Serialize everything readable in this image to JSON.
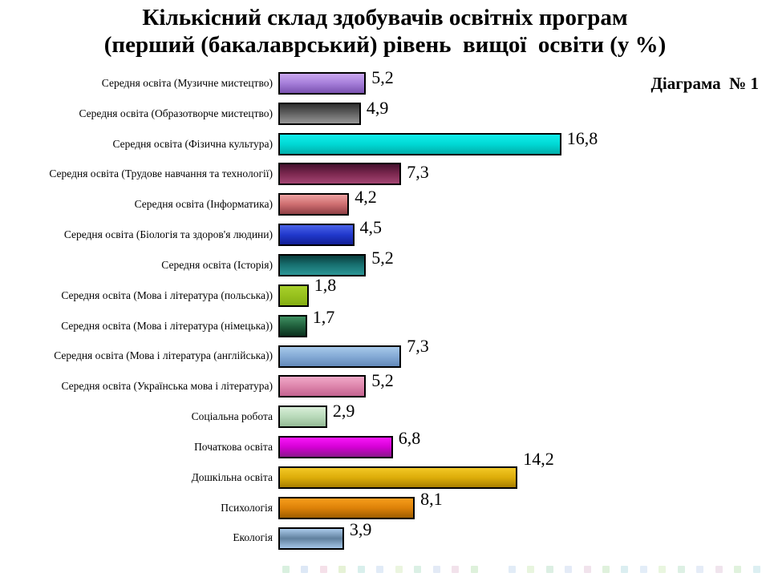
{
  "title": {
    "line1": "Кількісний склад здобувачів освітніх програм",
    "line2": "(перший (бакалаврський) рівень  вищої  освіти (у %)"
  },
  "diagram_label": "Діаграма  № 1",
  "chart_data": {
    "type": "bar",
    "orientation": "horizontal",
    "unit": "%",
    "title": "Кількісний склад здобувачів освітніх програм (перший (бакалаврський) рівень вищої освіти (у %)",
    "xlim": [
      0,
      17
    ],
    "axes_visible": false,
    "gridlines": false,
    "legend_position": "none",
    "value_label_position": "outside-end",
    "categories": [
      "Середня освіта (Музичне мистецтво)",
      "Середня освіта (Образотворче мистецтво)",
      "Середня освіта (Фізична  культура)",
      "Середня освіта (Трудове навчання та технології)",
      "Середня освіта (Інформатика)",
      "Середня освіта (Біологія та здоров'я людини)",
      "Середня освіта (Історія)",
      "Середня освіта (Мова і література (польська))",
      "Середня освіта (Мова і література (німецька))",
      "Середня освіта (Мова і література (англійська))",
      "Середня освіта (Українська мова і література)",
      "Соціальна робота",
      "Початкова освіта",
      "Дошкільна освіта",
      "Психологія",
      "Екологія"
    ],
    "values": [
      5.2,
      4.9,
      16.8,
      7.3,
      4.2,
      4.5,
      5.2,
      1.8,
      1.7,
      7.3,
      5.2,
      2.9,
      6.8,
      14.2,
      8.1,
      3.9
    ],
    "items": [
      {
        "label": "Середня освіта (Музичне мистецтво)",
        "value": 5.2,
        "value_label": "5,2",
        "colors": [
          "#c9a7ef",
          "#a57ed9",
          "#7a52b0"
        ],
        "voffset": 0
      },
      {
        "label": "Середня освіта (Образотворче мистецтво)",
        "value": 4.9,
        "value_label": "4,9",
        "colors": [
          "#303030",
          "#636363",
          "#979797"
        ],
        "voffset": 0
      },
      {
        "label": "Середня освіта (Фізична  культура)",
        "value": 16.8,
        "value_label": "16,8",
        "colors": [
          "#12efec",
          "#00d8d4",
          "#00aeaa"
        ],
        "voffset": 0
      },
      {
        "label": "Середня освіта (Трудове навчання та технології)",
        "value": 7.3,
        "value_label": "7,3",
        "colors": [
          "#45112e",
          "#7c2850",
          "#a44673"
        ],
        "voffset": 4
      },
      {
        "label": "Середня освіта (Інформатика)",
        "value": 4.2,
        "value_label": "4,2",
        "colors": [
          "#eda2a2",
          "#ce6e70",
          "#8f3f45"
        ],
        "voffset": -2
      },
      {
        "label": "Середня освіта (Біологія та здоров'я людини)",
        "value": 4.5,
        "value_label": "4,5",
        "colors": [
          "#4a63e8",
          "#2138cc",
          "#111f96"
        ],
        "voffset": -2
      },
      {
        "label": "Середня освіта (Історія)",
        "value": 5.2,
        "value_label": "5,2",
        "colors": [
          "#093d3d",
          "#187272",
          "#2b9595"
        ],
        "voffset": -2
      },
      {
        "label": "Середня освіта (Мова і література (польська))",
        "value": 1.8,
        "value_label": "1,8",
        "colors": [
          "#a8d02b",
          "#97c11d",
          "#85ad14"
        ],
        "voffset": -6
      },
      {
        "label": "Середня освіта (Мова і література (німецька))",
        "value": 1.7,
        "value_label": "1,7",
        "colors": [
          "#3f9162",
          "#20603c",
          "#0a301d"
        ],
        "voffset": -4
      },
      {
        "label": "Середня освіта (Мова і література (англійська))",
        "value": 7.3,
        "value_label": "7,3",
        "colors": [
          "#a7c9ea",
          "#84aad5",
          "#6389b9"
        ],
        "voffset": -6
      },
      {
        "label": "Середня освіта (Українська мова і література)",
        "value": 5.2,
        "value_label": "5,2",
        "colors": [
          "#f1a9c8",
          "#dd85ac",
          "#c3638f"
        ],
        "voffset": 0
      },
      {
        "label": "Соціальна робота",
        "value": 2.9,
        "value_label": "2,9",
        "colors": [
          "#d9efd9",
          "#b8d9b9",
          "#94bb96"
        ],
        "voffset": 0
      },
      {
        "label": "Початкова освіта",
        "value": 6.8,
        "value_label": "6,8",
        "colors": [
          "#f817f8",
          "#d400d4",
          "#8a178a"
        ],
        "voffset": -4
      },
      {
        "label": "Дошкільна освіта",
        "value": 14.2,
        "value_label": "14,2",
        "colors": [
          "#f2c725",
          "#ddad09",
          "#a87e00"
        ],
        "voffset": -16
      },
      {
        "label": "Психологія",
        "value": 8.1,
        "value_label": "8,1",
        "colors": [
          "#f79e1c",
          "#dd8108",
          "#9e5e00"
        ],
        "voffset": -4
      },
      {
        "label": "Екологія",
        "value": 3.9,
        "value_label": "3,9",
        "colors": [
          "#a9c9e9",
          "#61819f",
          "#a3c5e7"
        ],
        "voffset": -4
      }
    ]
  },
  "footer": {
    "mark_colors": [
      "#b5e3c0",
      "#bcd2ee",
      "#ecc2d4",
      "#cfe6ae",
      "#b4e0da",
      "#c4d9f0",
      "#d8ecc0",
      "#b9e2cc",
      "#c9d6ef",
      "#e6c7d8",
      "#bfe4b8",
      "#b7ddе2",
      "#c6daf1",
      "#d3ecbe",
      "#bbe1c9",
      "#cbd8f0",
      "#e4c9da",
      "#c1e5ba",
      "#b9dfe4",
      "#c8dcf2",
      "#d5eec0",
      "#bde3cb",
      "#cddaf1",
      "#e2cbdc",
      "#c3e7bc",
      "#bbe1e6"
    ]
  }
}
